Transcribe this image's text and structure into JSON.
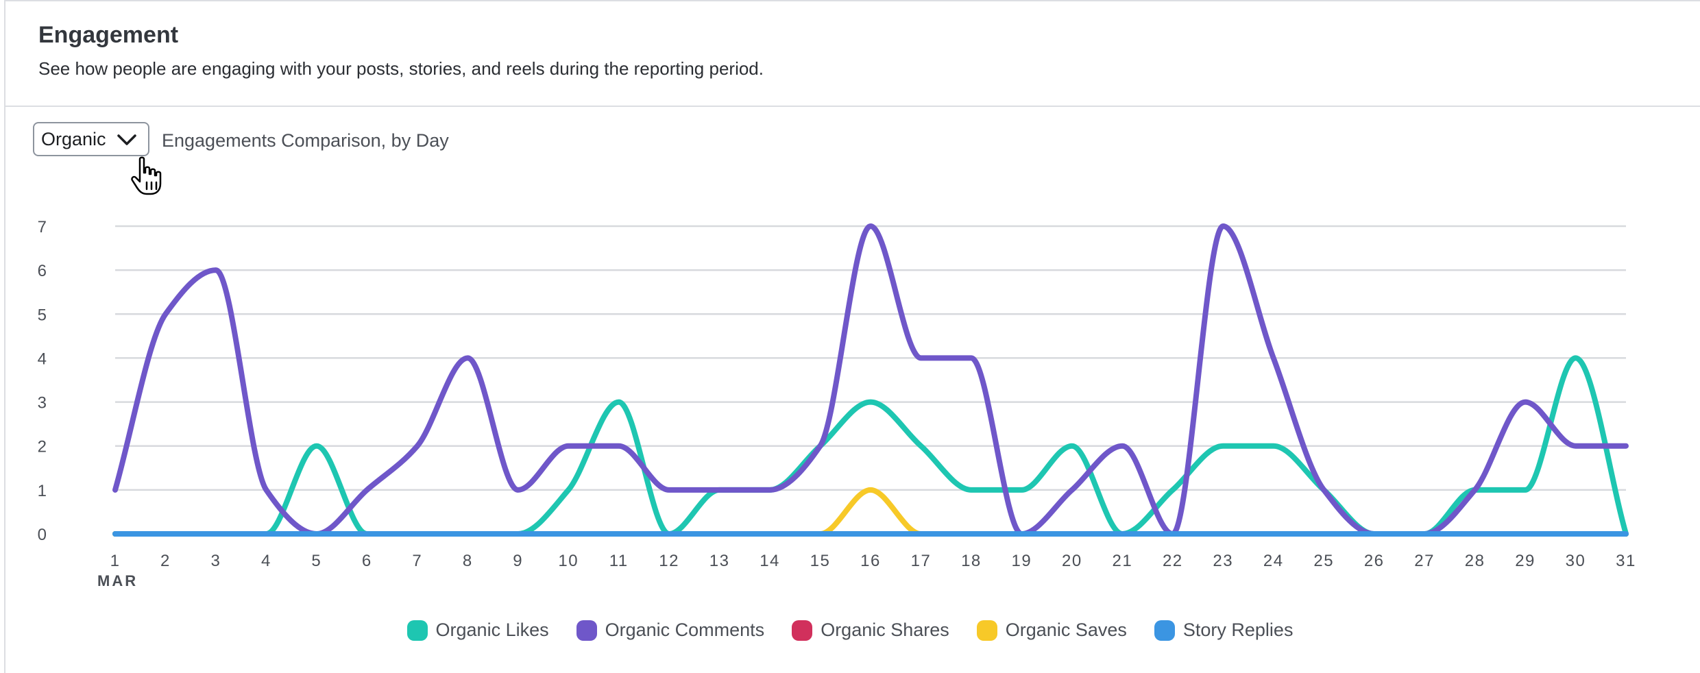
{
  "header": {
    "title": "Engagement",
    "subtitle": "See how people are engaging with your posts, stories, and reels during the reporting period."
  },
  "controls": {
    "dropdown_value": "Organic",
    "comparison_label": "Engagements Comparison, by Day"
  },
  "icons": {
    "dropdown": "chevron-down-icon",
    "cursor": "hand-pointer-icon"
  },
  "chart_data": {
    "type": "line",
    "x": [
      1,
      2,
      3,
      4,
      5,
      6,
      7,
      8,
      9,
      10,
      11,
      12,
      13,
      14,
      15,
      16,
      17,
      18,
      19,
      20,
      21,
      22,
      23,
      24,
      25,
      26,
      27,
      28,
      29,
      30,
      31
    ],
    "x_tick_labels": [
      "1",
      "2",
      "3",
      "4",
      "5",
      "6",
      "7",
      "8",
      "9",
      "10",
      "11",
      "12",
      "13",
      "14",
      "15",
      "16",
      "17",
      "18",
      "19",
      "20",
      "21",
      "22",
      "23",
      "24",
      "25",
      "26",
      "27",
      "28",
      "29",
      "30",
      "31"
    ],
    "x_sublabel": "MAR",
    "ylim": [
      0,
      7
    ],
    "y_ticks": [
      0,
      1,
      2,
      3,
      4,
      5,
      6,
      7
    ],
    "grid": true,
    "legend_position": "bottom",
    "series": [
      {
        "name": "Organic Likes",
        "color": "#1ec6b1",
        "values": [
          0,
          0,
          0,
          0,
          2,
          0,
          0,
          0,
          0,
          1,
          3,
          0,
          1,
          1,
          2,
          3,
          2,
          1,
          1,
          2,
          0,
          1,
          2,
          2,
          1,
          0,
          0,
          1,
          1,
          4,
          0
        ]
      },
      {
        "name": "Organic Comments",
        "color": "#6f57c9",
        "values": [
          1,
          5,
          6,
          1,
          0,
          1,
          2,
          4,
          1,
          2,
          2,
          1,
          1,
          1,
          2,
          7,
          4,
          4,
          0,
          1,
          2,
          0,
          7,
          4,
          1,
          0,
          0,
          1,
          3,
          2,
          2
        ]
      },
      {
        "name": "Organic Shares",
        "color": "#d1305c",
        "values": [
          0,
          0,
          0,
          0,
          0,
          0,
          0,
          0,
          0,
          0,
          0,
          0,
          0,
          0,
          0,
          0,
          0,
          0,
          0,
          0,
          0,
          0,
          0,
          0,
          0,
          0,
          0,
          0,
          0,
          0,
          0
        ]
      },
      {
        "name": "Organic Saves",
        "color": "#f7c928",
        "values": [
          0,
          0,
          0,
          0,
          0,
          0,
          0,
          0,
          0,
          0,
          0,
          0,
          0,
          0,
          0,
          1,
          0,
          0,
          0,
          0,
          0,
          0,
          0,
          0,
          0,
          0,
          0,
          0,
          0,
          0,
          0
        ]
      },
      {
        "name": "Story Replies",
        "color": "#3b95e2",
        "values": [
          0,
          0,
          0,
          0,
          0,
          0,
          0,
          0,
          0,
          0,
          0,
          0,
          0,
          0,
          0,
          0,
          0,
          0,
          0,
          0,
          0,
          0,
          0,
          0,
          0,
          0,
          0,
          0,
          0,
          0,
          0
        ]
      }
    ]
  }
}
